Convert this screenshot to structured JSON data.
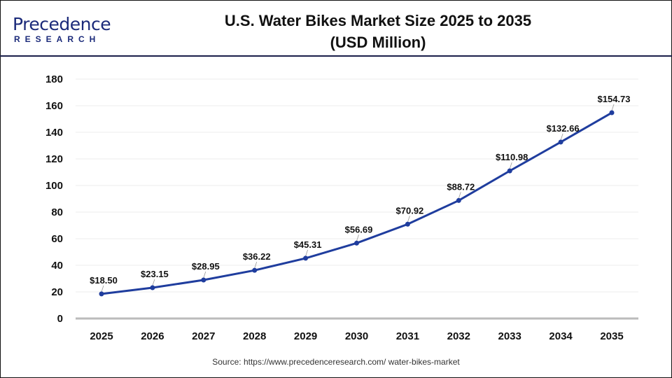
{
  "logo": {
    "name": "Precedence",
    "sub": "RESEARCH"
  },
  "title_line1": "U.S. Water Bikes Market Size 2025 to 2035",
  "title_line2": "(USD Million)",
  "source": "Source: https://www.precedenceresearch.com/ water-bikes-market",
  "chart_data": {
    "type": "line",
    "title": "U.S. Water Bikes Market Size 2025 to 2035 (USD Million)",
    "categories": [
      "2025",
      "2026",
      "2027",
      "2028",
      "2029",
      "2030",
      "2031",
      "2032",
      "2033",
      "2034",
      "2035"
    ],
    "values": [
      18.5,
      23.15,
      28.95,
      36.22,
      45.31,
      56.69,
      70.92,
      88.72,
      110.98,
      132.66,
      154.73
    ],
    "data_labels": [
      "$18.50",
      "$23.15",
      "$28.95",
      "$36.22",
      "$45.31",
      "$56.69",
      "$70.92",
      "$88.72",
      "$110.98",
      "$132.66",
      "$154.73"
    ],
    "ylim": [
      0,
      180
    ],
    "yticks": [
      0,
      20,
      40,
      60,
      80,
      100,
      120,
      140,
      160,
      180
    ],
    "grid": true,
    "line_color": "#1f3d9e"
  }
}
